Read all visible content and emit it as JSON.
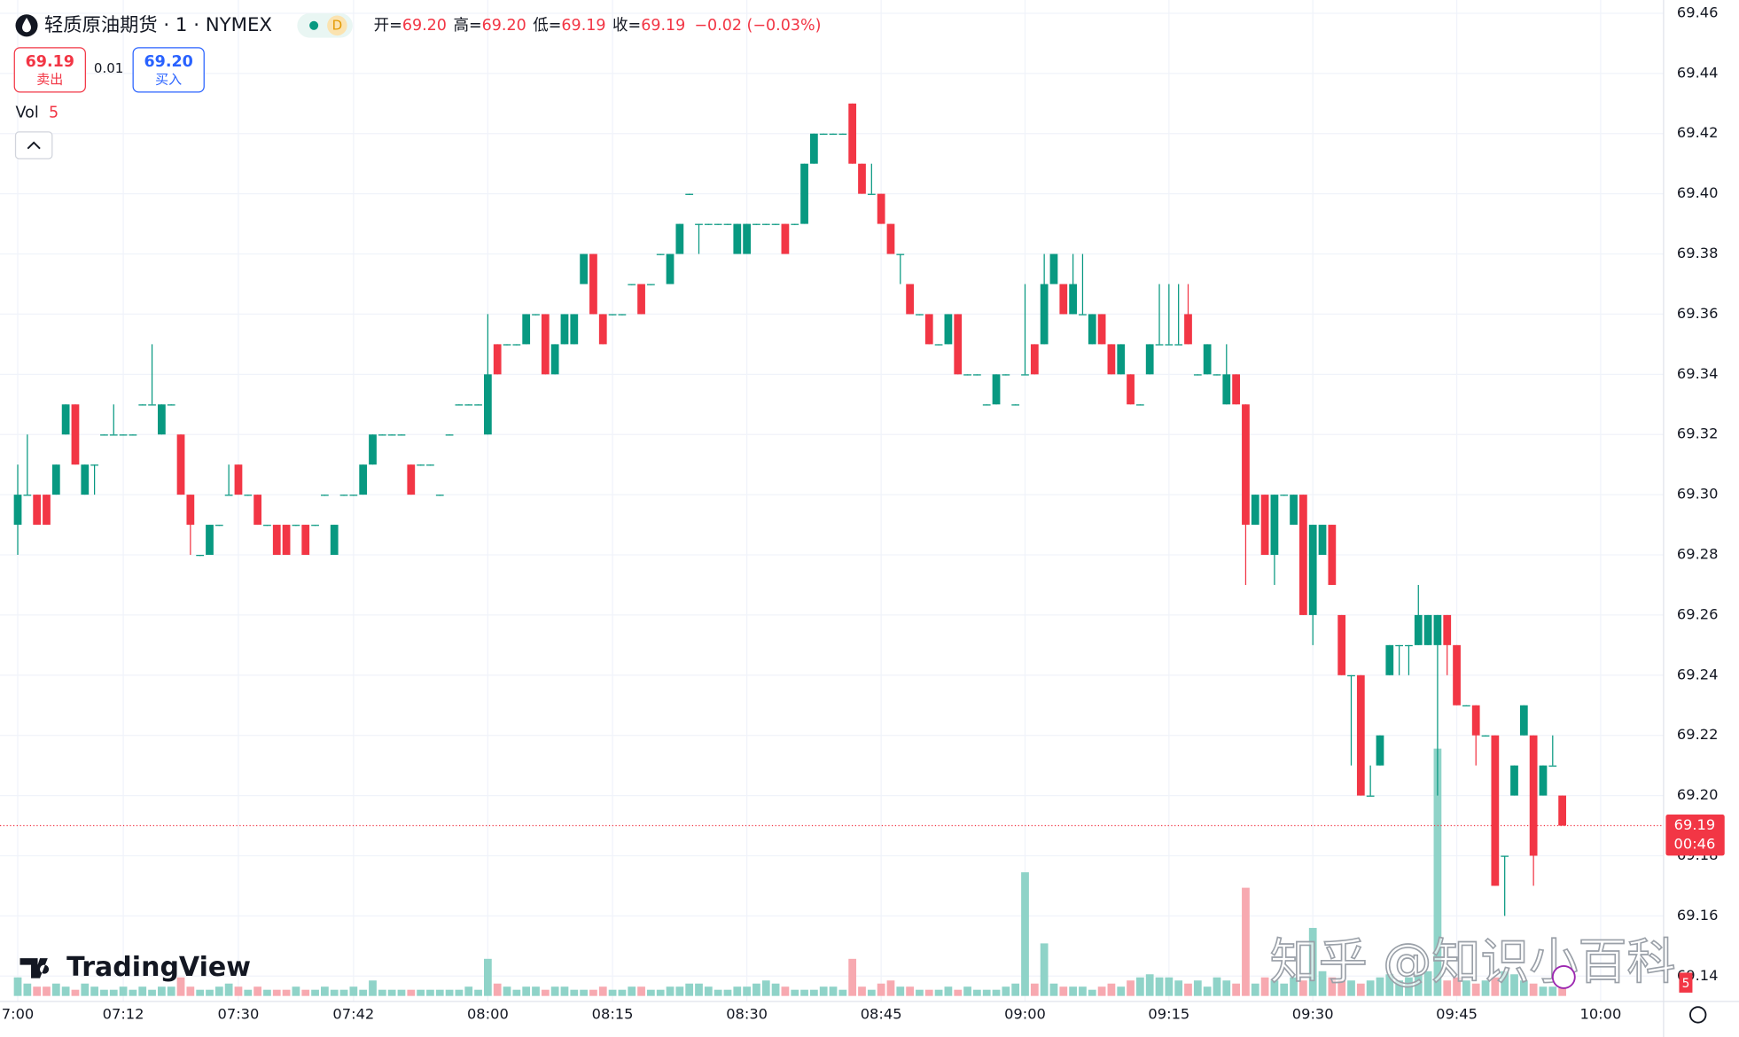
{
  "chart_data": {
    "type": "candlestick",
    "title": "轻质原油期货 · 1 · NYMEX",
    "interval_badge": "D",
    "ohlc_header": [
      {
        "label": "开=",
        "value": "69.20"
      },
      {
        "label": "高=",
        "value": "69.20"
      },
      {
        "label": "低=",
        "value": "69.19"
      },
      {
        "label": "收=",
        "value": "69.19"
      }
    ],
    "change": "−0.02 (−0.03%)",
    "bid": {
      "price": "69.19",
      "label": "卖出"
    },
    "spread": "0.01",
    "ask": {
      "price": "69.20",
      "label": "买入"
    },
    "volume_label": "Vol",
    "countdown": "00:46",
    "logo_text": "TradingView",
    "watermark": "知乎 @知识小百科",
    "up_color": "#089981",
    "down_color": "#f23645",
    "volume_up_color": "#8fd3c8",
    "volume_down_color": "#f7a9b0",
    "grid": true,
    "xlim": [
      -1.85,
      171.56
    ],
    "ylim": [
      69.1334,
      69.4644
    ],
    "yticks": [
      {
        "value": 69.14,
        "label": "69.14"
      },
      {
        "value": 69.16,
        "label": "69.16"
      },
      {
        "value": 69.18,
        "label": "69.18"
      },
      {
        "value": 69.2,
        "label": "69.20"
      },
      {
        "value": 69.22,
        "label": "69.22"
      },
      {
        "value": 69.24,
        "label": "69.24"
      },
      {
        "value": 69.26,
        "label": "69.26"
      },
      {
        "value": 69.28,
        "label": "69.28"
      },
      {
        "value": 69.3,
        "label": "69.30"
      },
      {
        "value": 69.32,
        "label": "69.32"
      },
      {
        "value": 69.34,
        "label": "69.34"
      },
      {
        "value": 69.36,
        "label": "69.36"
      },
      {
        "value": 69.38,
        "label": "69.38"
      },
      {
        "value": 69.4,
        "label": "69.40"
      },
      {
        "value": 69.42,
        "label": "69.42"
      },
      {
        "value": 69.44,
        "label": "69.44"
      },
      {
        "value": 69.46,
        "label": "69.46"
      }
    ],
    "xticks": [
      {
        "value": 0,
        "label": "7:00"
      },
      {
        "value": 11,
        "label": "07:12"
      },
      {
        "value": 23,
        "label": "07:30"
      },
      {
        "value": 35,
        "label": "07:42"
      },
      {
        "value": 49,
        "label": "08:00"
      },
      {
        "value": 62,
        "label": "08:15"
      },
      {
        "value": 76,
        "label": "08:30"
      },
      {
        "value": 90,
        "label": "08:45"
      },
      {
        "value": 105,
        "label": "09:00"
      },
      {
        "value": 120,
        "label": "09:15"
      },
      {
        "value": 135,
        "label": "09:30"
      },
      {
        "value": 150,
        "label": "09:45"
      },
      {
        "value": 165,
        "label": "10:00"
      }
    ],
    "open": [
      69.29,
      69.3,
      69.3,
      69.3,
      69.3,
      69.32,
      69.33,
      69.3,
      69.31,
      69.32,
      69.32,
      69.32,
      69.32,
      69.33,
      69.33,
      69.32,
      69.33,
      69.32,
      69.3,
      69.28,
      69.28,
      69.29,
      69.3,
      69.31,
      69.3,
      69.3,
      69.29,
      69.29,
      69.29,
      69.29,
      69.29,
      69.29,
      69.3,
      69.28,
      69.3,
      69.3,
      69.3,
      69.31,
      69.32,
      69.32,
      69.32,
      69.31,
      69.31,
      69.31,
      69.3,
      69.32,
      69.33,
      69.33,
      69.33,
      69.32,
      69.35,
      69.35,
      69.35,
      69.35,
      69.36,
      69.36,
      69.34,
      69.35,
      69.35,
      69.37,
      69.38,
      69.36,
      69.36,
      69.36,
      69.37,
      69.37,
      69.37,
      69.38,
      69.37,
      69.38,
      69.4,
      69.39,
      69.39,
      69.39,
      69.39,
      69.38,
      69.38,
      69.39,
      69.39,
      69.39,
      69.39,
      69.39,
      69.39,
      69.41,
      69.42,
      69.42,
      69.42,
      69.43,
      69.41,
      69.4,
      69.4,
      69.39,
      69.38,
      69.37,
      69.36,
      69.36,
      69.35,
      69.35,
      69.36,
      69.34,
      69.34,
      69.33,
      69.33,
      69.34,
      69.33,
      69.34,
      69.35,
      69.35,
      69.37,
      69.37,
      69.36,
      69.36,
      69.35,
      69.36,
      69.35,
      69.34,
      69.34,
      69.33,
      69.34,
      69.35,
      69.35,
      69.35,
      69.36,
      69.34,
      69.34,
      69.34,
      69.33,
      69.34,
      69.33,
      69.29,
      69.3,
      69.28,
      69.3,
      69.29,
      69.3,
      69.26,
      69.28,
      69.29,
      69.26,
      69.24,
      69.24,
      69.2,
      69.21,
      69.24,
      69.25,
      69.25,
      69.25,
      69.25,
      69.25,
      69.26,
      69.25,
      69.23,
      69.23,
      69.22,
      69.22,
      69.18,
      69.2,
      69.22,
      69.22,
      69.2,
      69.21,
      69.2
    ],
    "high": [
      69.31,
      69.32,
      69.3,
      69.3,
      69.31,
      69.33,
      69.33,
      69.31,
      69.31,
      69.32,
      69.33,
      69.32,
      69.32,
      69.33,
      69.35,
      69.33,
      69.33,
      69.32,
      69.3,
      69.28,
      69.29,
      69.29,
      69.31,
      69.31,
      69.3,
      69.3,
      69.29,
      69.29,
      69.29,
      69.29,
      69.29,
      69.29,
      69.3,
      69.29,
      69.3,
      69.3,
      69.31,
      69.32,
      69.32,
      69.32,
      69.32,
      69.31,
      69.31,
      69.31,
      69.3,
      69.32,
      69.33,
      69.33,
      69.33,
      69.36,
      69.35,
      69.35,
      69.35,
      69.36,
      69.36,
      69.36,
      69.35,
      69.36,
      69.36,
      69.38,
      69.38,
      69.36,
      69.36,
      69.36,
      69.37,
      69.37,
      69.37,
      69.38,
      69.38,
      69.39,
      69.4,
      69.39,
      69.39,
      69.39,
      69.39,
      69.39,
      69.39,
      69.39,
      69.39,
      69.39,
      69.39,
      69.39,
      69.41,
      69.42,
      69.42,
      69.42,
      69.42,
      69.43,
      69.41,
      69.41,
      69.4,
      69.39,
      69.38,
      69.37,
      69.36,
      69.36,
      69.35,
      69.36,
      69.36,
      69.34,
      69.34,
      69.33,
      69.34,
      69.34,
      69.33,
      69.37,
      69.35,
      69.38,
      69.38,
      69.37,
      69.38,
      69.38,
      69.36,
      69.36,
      69.35,
      69.35,
      69.34,
      69.33,
      69.35,
      69.37,
      69.37,
      69.37,
      69.37,
      69.34,
      69.35,
      69.34,
      69.35,
      69.34,
      69.33,
      69.3,
      69.3,
      69.3,
      69.3,
      69.3,
      69.3,
      69.29,
      69.29,
      69.29,
      69.26,
      69.24,
      69.24,
      69.21,
      69.22,
      69.25,
      69.25,
      69.25,
      69.27,
      69.26,
      69.26,
      69.26,
      69.25,
      69.23,
      69.23,
      69.22,
      69.22,
      69.18,
      69.21,
      69.23,
      69.22,
      69.21,
      69.22,
      69.2
    ],
    "low": [
      69.28,
      69.3,
      69.29,
      69.29,
      69.3,
      69.32,
      69.31,
      69.3,
      69.3,
      69.32,
      69.32,
      69.32,
      69.32,
      69.33,
      69.33,
      69.32,
      69.33,
      69.3,
      69.28,
      69.28,
      69.28,
      69.29,
      69.3,
      69.3,
      69.3,
      69.29,
      69.29,
      69.28,
      69.28,
      69.29,
      69.28,
      69.29,
      69.3,
      69.28,
      69.3,
      69.3,
      69.3,
      69.31,
      69.32,
      69.32,
      69.32,
      69.3,
      69.31,
      69.31,
      69.3,
      69.32,
      69.33,
      69.33,
      69.33,
      69.32,
      69.34,
      69.35,
      69.35,
      69.35,
      69.36,
      69.34,
      69.34,
      69.35,
      69.35,
      69.37,
      69.36,
      69.35,
      69.36,
      69.36,
      69.37,
      69.36,
      69.37,
      69.38,
      69.37,
      69.38,
      69.4,
      69.38,
      69.39,
      69.39,
      69.39,
      69.38,
      69.38,
      69.39,
      69.39,
      69.39,
      69.38,
      69.39,
      69.39,
      69.41,
      69.42,
      69.42,
      69.42,
      69.41,
      69.4,
      69.4,
      69.39,
      69.38,
      69.37,
      69.36,
      69.36,
      69.35,
      69.35,
      69.35,
      69.34,
      69.34,
      69.34,
      69.33,
      69.33,
      69.34,
      69.33,
      69.34,
      69.34,
      69.35,
      69.37,
      69.36,
      69.36,
      69.36,
      69.35,
      69.35,
      69.34,
      69.34,
      69.33,
      69.33,
      69.34,
      69.35,
      69.35,
      69.35,
      69.35,
      69.34,
      69.34,
      69.34,
      69.33,
      69.33,
      69.27,
      69.29,
      69.28,
      69.27,
      69.3,
      69.29,
      69.26,
      69.25,
      69.28,
      69.27,
      69.24,
      69.21,
      69.2,
      69.2,
      69.21,
      69.24,
      69.24,
      69.24,
      69.25,
      69.25,
      69.2,
      69.24,
      69.23,
      69.23,
      69.21,
      69.22,
      69.17,
      69.16,
      69.2,
      69.22,
      69.17,
      69.2,
      69.21,
      69.19
    ],
    "close": [
      69.3,
      69.3,
      69.29,
      69.29,
      69.31,
      69.33,
      69.31,
      69.31,
      69.31,
      69.32,
      69.32,
      69.32,
      69.32,
      69.33,
      69.33,
      69.33,
      69.33,
      69.3,
      69.29,
      69.28,
      69.29,
      69.29,
      69.3,
      69.3,
      69.3,
      69.29,
      69.29,
      69.28,
      69.28,
      69.29,
      69.28,
      69.29,
      69.3,
      69.29,
      69.3,
      69.3,
      69.31,
      69.32,
      69.32,
      69.32,
      69.32,
      69.3,
      69.31,
      69.31,
      69.3,
      69.32,
      69.33,
      69.33,
      69.33,
      69.34,
      69.34,
      69.35,
      69.35,
      69.36,
      69.36,
      69.34,
      69.35,
      69.36,
      69.36,
      69.38,
      69.36,
      69.35,
      69.36,
      69.36,
      69.37,
      69.36,
      69.37,
      69.38,
      69.38,
      69.39,
      69.4,
      69.39,
      69.39,
      69.39,
      69.39,
      69.39,
      69.39,
      69.39,
      69.39,
      69.39,
      69.38,
      69.39,
      69.41,
      69.42,
      69.42,
      69.42,
      69.42,
      69.41,
      69.4,
      69.4,
      69.39,
      69.38,
      69.38,
      69.36,
      69.36,
      69.35,
      69.35,
      69.36,
      69.34,
      69.34,
      69.34,
      69.33,
      69.34,
      69.34,
      69.33,
      69.34,
      69.34,
      69.37,
      69.38,
      69.36,
      69.37,
      69.36,
      69.36,
      69.35,
      69.34,
      69.35,
      69.33,
      69.33,
      69.35,
      69.35,
      69.35,
      69.35,
      69.35,
      69.34,
      69.35,
      69.34,
      69.34,
      69.33,
      69.29,
      69.3,
      69.28,
      69.3,
      69.3,
      69.3,
      69.26,
      69.29,
      69.29,
      69.27,
      69.24,
      69.24,
      69.2,
      69.2,
      69.22,
      69.25,
      69.25,
      69.25,
      69.26,
      69.26,
      69.26,
      69.25,
      69.23,
      69.23,
      69.22,
      69.22,
      69.17,
      69.18,
      69.21,
      69.23,
      69.18,
      69.21,
      69.21,
      69.19
    ],
    "volume": [
      6,
      4,
      3,
      3,
      4,
      3,
      2,
      4,
      3,
      2,
      2,
      3,
      2,
      3,
      2,
      3,
      3,
      6,
      3,
      2,
      2,
      3,
      4,
      3,
      2,
      3,
      2,
      2,
      2,
      3,
      2,
      2,
      3,
      2,
      2,
      3,
      2,
      5,
      2,
      2,
      2,
      2,
      2,
      2,
      2,
      2,
      2,
      3,
      2,
      12,
      4,
      3,
      2,
      3,
      3,
      2,
      3,
      3,
      2,
      2,
      2,
      3,
      2,
      2,
      3,
      3,
      2,
      2,
      3,
      3,
      4,
      4,
      3,
      2,
      2,
      3,
      3,
      4,
      5,
      4,
      3,
      2,
      2,
      2,
      3,
      3,
      2,
      12,
      3,
      2,
      4,
      5,
      3,
      3,
      2,
      2,
      2,
      3,
      2,
      3,
      2,
      2,
      2,
      3,
      4,
      40,
      4,
      17,
      4,
      3,
      3,
      3,
      2,
      3,
      4,
      3,
      5,
      6,
      7,
      6,
      6,
      5,
      4,
      5,
      3,
      6,
      5,
      4,
      35,
      4,
      6,
      5,
      4,
      6,
      5,
      22,
      8,
      6,
      5,
      5,
      4,
      5,
      6,
      7,
      5,
      6,
      7,
      8,
      80,
      5,
      6,
      5,
      4,
      5,
      6,
      8,
      7,
      5,
      4,
      3,
      3,
      5
    ]
  }
}
